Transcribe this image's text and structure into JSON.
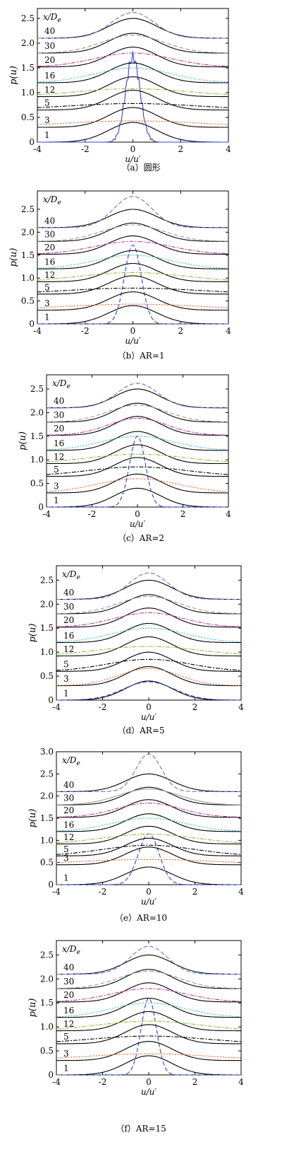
{
  "figure": {
    "panels": [
      {
        "caption": "（a）圆形"
      },
      {
        "caption": "（b）AR=1"
      },
      {
        "caption": "（c）AR=2"
      },
      {
        "caption": "（d）AR=5"
      },
      {
        "caption": "（e）AR=10"
      },
      {
        "caption": "（f）AR=15"
      }
    ]
  },
  "chart_data": [
    {
      "type": "line",
      "title": "（a）圆形",
      "xlabel": "u/u′",
      "ylabel": "p(u)",
      "xlim": [
        -4,
        4
      ],
      "ylim": [
        0,
        2.7
      ],
      "xticks": [
        -4,
        -2,
        0,
        2,
        4
      ],
      "yticks": [
        0,
        0.5,
        1.0,
        1.5,
        2.0,
        2.5
      ],
      "legend_header": "x/De",
      "stations": [
        1,
        3,
        5,
        12,
        16,
        20,
        30,
        40
      ],
      "series": [
        {
          "station": 1,
          "offset": 0.0,
          "color": "#3344cc",
          "style": "solid-noisy",
          "peak": 1.72,
          "width": 0.3
        },
        {
          "station": 3,
          "offset": 0.3,
          "color": "#e8652a",
          "style": "dotted",
          "peak": 0.13,
          "width": 3.0
        },
        {
          "station": 5,
          "offset": 0.65,
          "color": "#000000",
          "style": "dashdot",
          "peak": 0.13,
          "width": 2.8
        },
        {
          "station": 12,
          "offset": 0.92,
          "color": "#8fbf3a",
          "style": "dashdot",
          "peak": 0.16,
          "width": 2.4
        },
        {
          "station": 16,
          "offset": 1.2,
          "color": "#36c2c2",
          "style": "dotted",
          "peak": 0.3,
          "width": 1.6
        },
        {
          "station": 20,
          "offset": 1.52,
          "color": "#c03a9a",
          "style": "dashdot",
          "peak": 0.28,
          "width": 1.6
        },
        {
          "station": 30,
          "offset": 1.8,
          "color": "#999999",
          "style": "dash",
          "peak": 0.36,
          "width": 1.3
        },
        {
          "station": 40,
          "offset": 2.1,
          "color": "#6677cc",
          "style": "dash",
          "peak": 0.52,
          "width": 0.9
        }
      ]
    },
    {
      "type": "line",
      "title": "（b）AR=1",
      "xlabel": "u/u′",
      "ylabel": "p(u)",
      "xlim": [
        -4,
        4
      ],
      "ylim": [
        0,
        2.9
      ],
      "xticks": [
        -4,
        -2,
        0,
        2,
        4
      ],
      "yticks": [
        0,
        0.5,
        1.0,
        1.5,
        2.0,
        2.5
      ],
      "legend_header": "x/De",
      "stations": [
        1,
        3,
        5,
        12,
        16,
        20,
        30,
        40
      ],
      "series": [
        {
          "station": 1,
          "offset": 0.0,
          "color": "#3344cc",
          "style": "dash",
          "peak": 1.72,
          "width": 0.35
        },
        {
          "station": 3,
          "offset": 0.3,
          "color": "#e8652a",
          "style": "dotted",
          "peak": 0.13,
          "width": 3.0
        },
        {
          "station": 5,
          "offset": 0.65,
          "color": "#000000",
          "style": "dashdot",
          "peak": 0.13,
          "width": 2.8
        },
        {
          "station": 12,
          "offset": 0.92,
          "color": "#8fbf3a",
          "style": "dashdot",
          "peak": 0.2,
          "width": 2.2
        },
        {
          "station": 16,
          "offset": 1.2,
          "color": "#36c2c2",
          "style": "dotted",
          "peak": 0.3,
          "width": 1.6
        },
        {
          "station": 20,
          "offset": 1.52,
          "color": "#c03a9a",
          "style": "dashdot",
          "peak": 0.28,
          "width": 1.6
        },
        {
          "station": 30,
          "offset": 1.8,
          "color": "#999999",
          "style": "dash",
          "peak": 0.36,
          "width": 1.3
        },
        {
          "station": 40,
          "offset": 2.1,
          "color": "#6677cc",
          "style": "dash",
          "peak": 0.68,
          "width": 0.8
        }
      ]
    },
    {
      "type": "line",
      "title": "（c）AR=2",
      "xlabel": "u/u′",
      "ylabel": "p(u)",
      "xlim": [
        -4,
        4
      ],
      "ylim": [
        0,
        2.8
      ],
      "xticks": [
        -4,
        -2,
        0,
        2,
        4
      ],
      "yticks": [
        0,
        0.5,
        1.0,
        1.5,
        2.0,
        2.5
      ],
      "legend_header": "x/De",
      "stations": [
        1,
        3,
        5,
        12,
        16,
        20,
        30,
        40
      ],
      "series": [
        {
          "station": 1,
          "offset": 0.0,
          "color": "#3344cc",
          "style": "dash",
          "peak": 1.5,
          "width": 0.35
        },
        {
          "station": 3,
          "offset": 0.3,
          "color": "#e8652a",
          "style": "dotted",
          "peak": 0.3,
          "width": 1.8
        },
        {
          "station": 5,
          "offset": 0.65,
          "color": "#000000",
          "style": "dashdot",
          "peak": 0.2,
          "width": 2.2
        },
        {
          "station": 12,
          "offset": 0.92,
          "color": "#8fbf3a",
          "style": "dashdot",
          "peak": 0.2,
          "width": 2.2
        },
        {
          "station": 16,
          "offset": 1.2,
          "color": "#36c2c2",
          "style": "dotted",
          "peak": 0.3,
          "width": 1.6
        },
        {
          "station": 20,
          "offset": 1.52,
          "color": "#c03a9a",
          "style": "dashdot",
          "peak": 0.36,
          "width": 1.3
        },
        {
          "station": 30,
          "offset": 1.8,
          "color": "#999999",
          "style": "dash",
          "peak": 0.36,
          "width": 1.3
        },
        {
          "station": 40,
          "offset": 2.1,
          "color": "#6677cc",
          "style": "dash",
          "peak": 0.52,
          "width": 0.9
        }
      ]
    },
    {
      "type": "line",
      "title": "（d）AR=5",
      "xlabel": "u/u′",
      "ylabel": "p(u)",
      "xlim": [
        -4,
        4
      ],
      "ylim": [
        0,
        2.8
      ],
      "xticks": [
        -4,
        -2,
        0,
        2,
        4
      ],
      "yticks": [
        0,
        0.5,
        1.0,
        1.5,
        2.0,
        2.5
      ],
      "legend_header": "x/De",
      "stations": [
        1,
        3,
        5,
        12,
        16,
        20,
        30,
        40
      ],
      "series": [
        {
          "station": 1,
          "offset": 0.0,
          "color": "#3344cc",
          "style": "dash",
          "peak": 0.38,
          "width": 1.1
        },
        {
          "station": 3,
          "offset": 0.3,
          "color": "#e8652a",
          "style": "dotted",
          "peak": 0.36,
          "width": 1.3
        },
        {
          "station": 5,
          "offset": 0.6,
          "color": "#000000",
          "style": "dashdot",
          "peak": 0.25,
          "width": 1.8
        },
        {
          "station": 12,
          "offset": 0.92,
          "color": "#8fbf3a",
          "style": "dashdot",
          "peak": 0.2,
          "width": 2.2
        },
        {
          "station": 16,
          "offset": 1.2,
          "color": "#36c2c2",
          "style": "dotted",
          "peak": 0.3,
          "width": 1.6
        },
        {
          "station": 20,
          "offset": 1.52,
          "color": "#c03a9a",
          "style": "dashdot",
          "peak": 0.3,
          "width": 1.5
        },
        {
          "station": 30,
          "offset": 1.8,
          "color": "#999999",
          "style": "dash",
          "peak": 0.36,
          "width": 1.3
        },
        {
          "station": 40,
          "offset": 2.1,
          "color": "#6677cc",
          "style": "dash",
          "peak": 0.55,
          "width": 0.85
        }
      ]
    },
    {
      "type": "line",
      "title": "（e）AR=10",
      "xlabel": "u/u′",
      "ylabel": "p(u)",
      "xlim": [
        -4,
        4
      ],
      "ylim": [
        0,
        3.0
      ],
      "xticks": [
        -4,
        -2,
        0,
        2,
        4
      ],
      "yticks": [
        0,
        0.5,
        1.0,
        1.5,
        2.0,
        2.5,
        3.0
      ],
      "legend_header": "x/De",
      "stations": [
        1,
        3,
        5,
        12,
        16,
        20,
        30,
        40
      ],
      "series": [
        {
          "station": 1,
          "offset": 0.0,
          "color": "#3344cc",
          "style": "dash",
          "peak": 1.15,
          "width": 0.45
        },
        {
          "station": 3,
          "offset": 0.45,
          "color": "#e8652a",
          "style": "dotted",
          "peak": 0.12,
          "width": 3.0
        },
        {
          "station": 5,
          "offset": 0.65,
          "color": "#000000",
          "style": "dashdot",
          "peak": 0.24,
          "width": 2.0
        },
        {
          "station": 12,
          "offset": 0.92,
          "color": "#8fbf3a",
          "style": "dashdot",
          "peak": 0.22,
          "width": 2.0
        },
        {
          "station": 16,
          "offset": 1.2,
          "color": "#36c2c2",
          "style": "dotted",
          "peak": 0.3,
          "width": 1.6
        },
        {
          "station": 20,
          "offset": 1.52,
          "color": "#c03a9a",
          "style": "dashdot",
          "peak": 0.32,
          "width": 1.4
        },
        {
          "station": 30,
          "offset": 1.8,
          "color": "#999999",
          "style": "solid-light",
          "peak": 0.36,
          "width": 1.3
        },
        {
          "station": 40,
          "offset": 2.1,
          "color": "#6677cc",
          "style": "dash",
          "peak": 0.85,
          "width": 0.55
        }
      ]
    },
    {
      "type": "line",
      "title": "（f）AR=15",
      "xlabel": "u/u′",
      "ylabel": "p(u)",
      "xlim": [
        -4,
        4
      ],
      "ylim": [
        0,
        2.8
      ],
      "xticks": [
        -4,
        -2,
        0,
        2,
        4
      ],
      "yticks": [
        0,
        0.5,
        1.0,
        1.5,
        2.0,
        2.5
      ],
      "legend_header": "x/De",
      "stations": [
        1,
        3,
        5,
        12,
        16,
        20,
        30,
        40
      ],
      "series": [
        {
          "station": 1,
          "offset": 0.0,
          "color": "#3344cc",
          "style": "dash",
          "peak": 1.6,
          "width": 0.33
        },
        {
          "station": 3,
          "offset": 0.3,
          "color": "#e8652a",
          "style": "dotted",
          "peak": 0.14,
          "width": 2.8
        },
        {
          "station": 5,
          "offset": 0.65,
          "color": "#000000",
          "style": "dashdot",
          "peak": 0.16,
          "width": 2.5
        },
        {
          "station": 12,
          "offset": 0.92,
          "color": "#8fbf3a",
          "style": "dashdot",
          "peak": 0.2,
          "width": 2.2
        },
        {
          "station": 16,
          "offset": 1.2,
          "color": "#36c2c2",
          "style": "dotted",
          "peak": 0.3,
          "width": 1.6
        },
        {
          "station": 20,
          "offset": 1.52,
          "color": "#c03a9a",
          "style": "dashdot",
          "peak": 0.28,
          "width": 1.6
        },
        {
          "station": 30,
          "offset": 1.8,
          "color": "#999999",
          "style": "dash",
          "peak": 0.36,
          "width": 1.3
        },
        {
          "station": 40,
          "offset": 2.1,
          "color": "#6677cc",
          "style": "dash",
          "peak": 0.58,
          "width": 0.8
        }
      ]
    }
  ]
}
